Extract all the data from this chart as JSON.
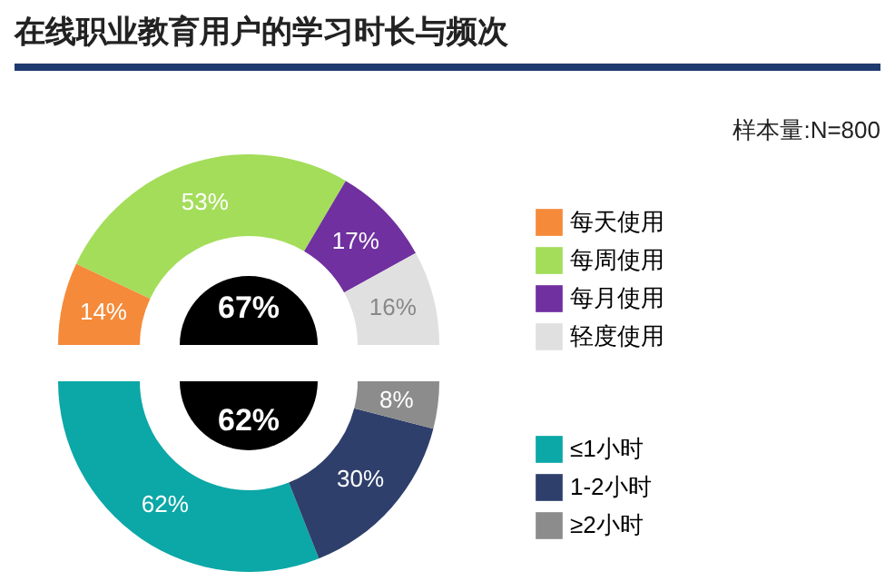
{
  "chart_data": [
    {
      "type": "donut",
      "title": "在线职业教育用户的学习时长与频次",
      "annotations": [
        "样本量:N=800",
        "67%"
      ],
      "categories": [
        "每天使用",
        "每周使用",
        "每月使用",
        "轻度使用"
      ],
      "values": [
        14,
        53,
        17,
        16
      ],
      "colors": [
        "#f58a3a",
        "#a3dd5a",
        "#7030a0",
        "#e0e0e0"
      ],
      "value_labels": [
        "14%",
        "53%",
        "17%",
        "16%"
      ],
      "legend": "right"
    },
    {
      "type": "donut",
      "annotations": [
        "62%"
      ],
      "categories": [
        "≤1小时",
        "1-2小时",
        "≥2小时"
      ],
      "values": [
        62,
        30,
        8
      ],
      "colors": [
        "#0ca7a7",
        "#2e3f6b",
        "#8c8c8c"
      ],
      "value_labels": [
        "62%",
        "30%",
        "8%"
      ],
      "legend": "right"
    }
  ]
}
